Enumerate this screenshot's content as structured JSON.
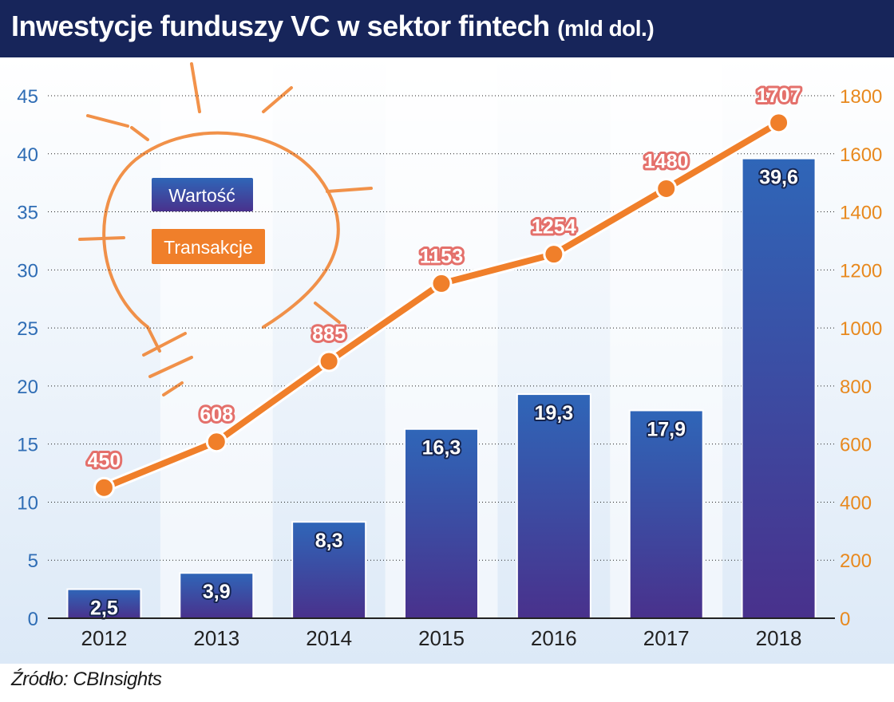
{
  "chart_data": {
    "type": "bar",
    "title": "Inwestycje funduszy VC w sektor fintech",
    "title_unit": "(mld dol.)",
    "source": "Źródło: CBInsights",
    "categories": [
      "2012",
      "2013",
      "2014",
      "2015",
      "2016",
      "2017",
      "2018"
    ],
    "series": [
      {
        "name": "Wartość",
        "type": "bar",
        "axis": "left",
        "color": "#3457a8",
        "values": [
          2.5,
          3.9,
          8.3,
          16.3,
          19.3,
          17.9,
          39.6
        ],
        "labels": [
          "2,5",
          "3,9",
          "8,3",
          "16,3",
          "19,3",
          "17,9",
          "39,6"
        ]
      },
      {
        "name": "Transakcje",
        "type": "line",
        "axis": "right",
        "color": "#f07f2a",
        "values": [
          450,
          608,
          885,
          1153,
          1254,
          1480,
          1707
        ],
        "labels": [
          "450",
          "608",
          "885",
          "1153",
          "1254",
          "1480",
          "1707"
        ]
      }
    ],
    "y_left": {
      "range": [
        0,
        45
      ],
      "ticks": [
        "0",
        "5",
        "10",
        "15",
        "20",
        "25",
        "30",
        "35",
        "40",
        "45"
      ],
      "color": "#2f6db5"
    },
    "y_right": {
      "range": [
        0,
        1800
      ],
      "ticks": [
        "0",
        "200",
        "400",
        "600",
        "800",
        "1000",
        "1200",
        "1400",
        "1600",
        "1800"
      ],
      "color": "#e8891e"
    },
    "grid": true,
    "legend": "top-left"
  }
}
